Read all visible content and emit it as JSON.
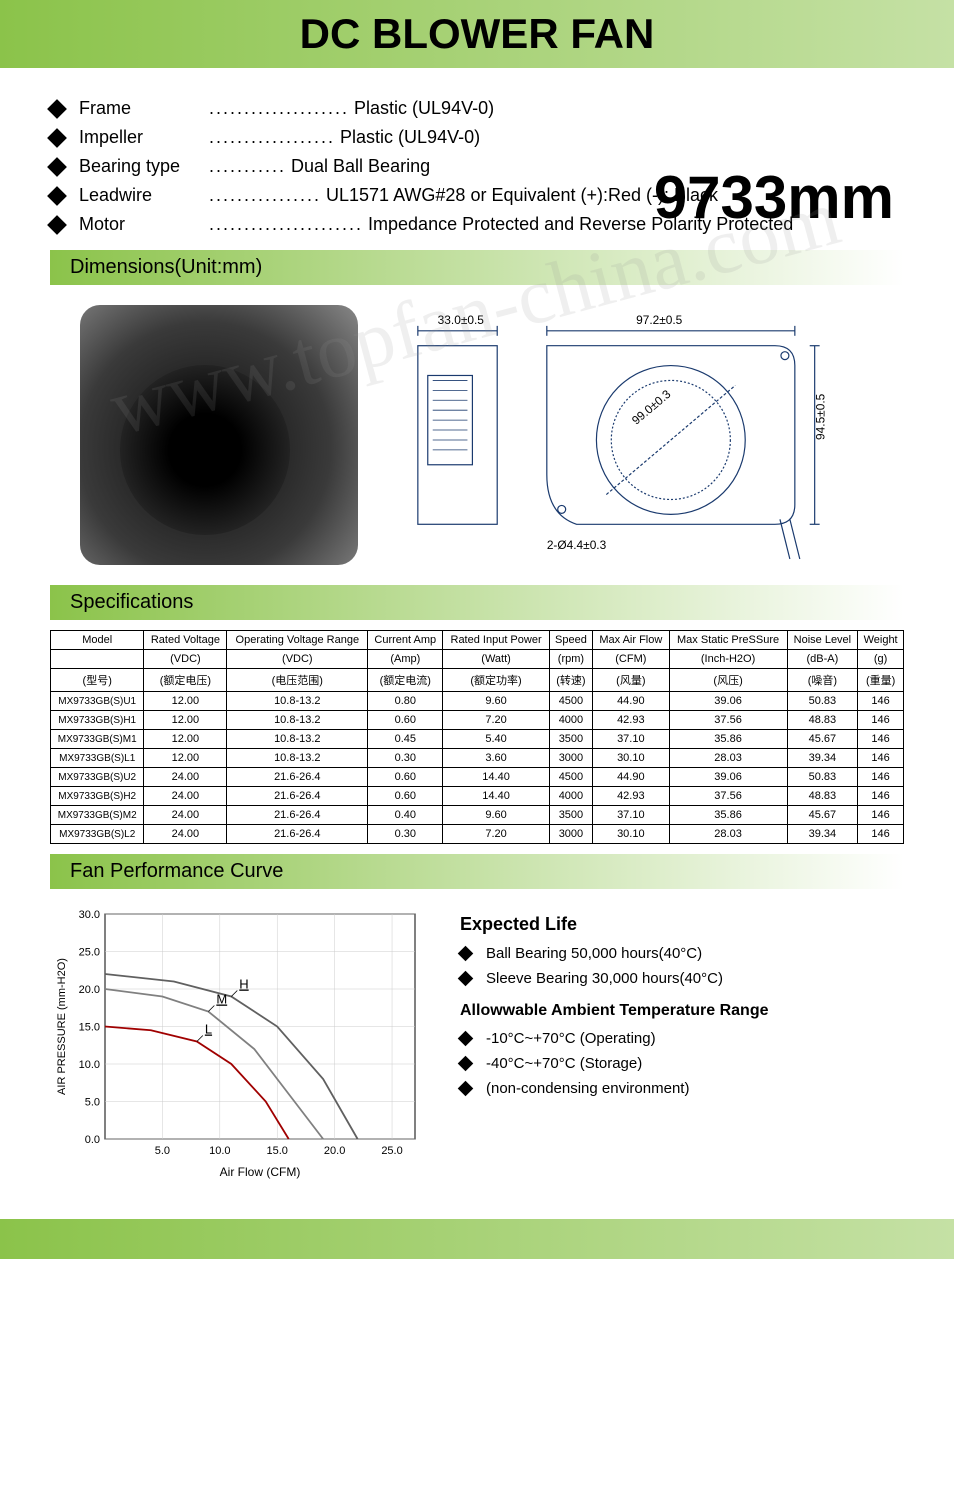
{
  "header": {
    "title": "DC BLOWER FAN"
  },
  "model_size": "9733mm",
  "attributes": [
    {
      "label": "Frame",
      "value": "Plastic (UL94V-0)"
    },
    {
      "label": "Impeller",
      "value": "Plastic (UL94V-0)"
    },
    {
      "label": "Bearing type",
      "value": "Dual Ball Bearing"
    },
    {
      "label": "Leadwire",
      "value": "UL1571 AWG#28 or Equivalent  (+):Red (-): Black"
    },
    {
      "label": "Motor",
      "value": "Impedance Protected and Reverse Polarity Protected"
    }
  ],
  "sections": {
    "dimensions": "Dimensions(Unit:mm)",
    "specifications": "Specifications",
    "performance": "Fan Performance Curve"
  },
  "drawing_dims": {
    "w1": "33.0±0.5",
    "w2": "97.2±0.5",
    "h1": "94.5±0.5",
    "diag": "99.0±0.3",
    "hole": "2-Ø4.4±0.3"
  },
  "table": {
    "headers_en": [
      "Model",
      "Rated Voltage",
      "Operating Voltage Range",
      "Current Amp",
      "Rated Input Power",
      "Speed",
      "Max Air Flow",
      "Max Static PreSSure",
      "Noise Level",
      "Weight"
    ],
    "units": [
      "",
      "(VDC)",
      "(VDC)",
      "(Amp)",
      "(Watt)",
      "(rpm)",
      "(CFM)",
      "(Inch-H2O)",
      "(dB-A)",
      "(g)"
    ],
    "headers_cn": [
      "(型号)",
      "(额定电压)",
      "(电压范围)",
      "(额定电流)",
      "(额定功率)",
      "(转速)",
      "(风量)",
      "(风压)",
      "(噪音)",
      "(重量)"
    ],
    "rows": [
      [
        "MX9733GB(S)U1",
        "12.00",
        "10.8-13.2",
        "0.80",
        "9.60",
        "4500",
        "44.90",
        "39.06",
        "50.83",
        "146"
      ],
      [
        "MX9733GB(S)H1",
        "12.00",
        "10.8-13.2",
        "0.60",
        "7.20",
        "4000",
        "42.93",
        "37.56",
        "48.83",
        "146"
      ],
      [
        "MX9733GB(S)M1",
        "12.00",
        "10.8-13.2",
        "0.45",
        "5.40",
        "3500",
        "37.10",
        "35.86",
        "45.67",
        "146"
      ],
      [
        "MX9733GB(S)L1",
        "12.00",
        "10.8-13.2",
        "0.30",
        "3.60",
        "3000",
        "30.10",
        "28.03",
        "39.34",
        "146"
      ],
      [
        "MX9733GB(S)U2",
        "24.00",
        "21.6-26.4",
        "0.60",
        "14.40",
        "4500",
        "44.90",
        "39.06",
        "50.83",
        "146"
      ],
      [
        "MX9733GB(S)H2",
        "24.00",
        "21.6-26.4",
        "0.60",
        "14.40",
        "4000",
        "42.93",
        "37.56",
        "48.83",
        "146"
      ],
      [
        "MX9733GB(S)M2",
        "24.00",
        "21.6-26.4",
        "0.40",
        "9.60",
        "3500",
        "37.10",
        "35.86",
        "45.67",
        "146"
      ],
      [
        "MX9733GB(S)L2",
        "24.00",
        "21.6-26.4",
        "0.30",
        "7.20",
        "3000",
        "30.10",
        "28.03",
        "39.34",
        "146"
      ]
    ]
  },
  "chart": {
    "xlabel": "Air Flow (CFM)",
    "ylabel": "AIR PRESSURE (mm-H2O)",
    "xlim": [
      0,
      27
    ],
    "ylim": [
      0,
      30
    ],
    "xticks": [
      "5.0",
      "10.0",
      "15.0",
      "20.0",
      "25.0"
    ],
    "yticks": [
      "0.0",
      "5.0",
      "10.0",
      "15.0",
      "20.0",
      "25.0",
      "30.0"
    ],
    "curves": [
      {
        "label": "H",
        "color": "#606060",
        "pts": [
          [
            0,
            22
          ],
          [
            6,
            21
          ],
          [
            11,
            19
          ],
          [
            15,
            15
          ],
          [
            19,
            8
          ],
          [
            22,
            0
          ]
        ]
      },
      {
        "label": "M",
        "color": "#808080",
        "pts": [
          [
            0,
            20
          ],
          [
            5,
            19
          ],
          [
            9,
            17
          ],
          [
            13,
            12
          ],
          [
            16,
            6
          ],
          [
            19,
            0
          ]
        ]
      },
      {
        "label": "L",
        "color": "#a00000",
        "pts": [
          [
            0,
            15
          ],
          [
            4,
            14.5
          ],
          [
            8,
            13
          ],
          [
            11,
            10
          ],
          [
            14,
            5
          ],
          [
            16,
            0
          ]
        ]
      }
    ],
    "bg": "#ffffff",
    "grid": "#cccccc"
  },
  "expected_life": {
    "title": "Expected Life",
    "items": [
      "Ball Bearing 50,000 hours(40°C)",
      "Sleeve Bearing 30,000 hours(40°C)"
    ],
    "allow_title": "Allowwable Ambient Temperature Range",
    "allow_items": [
      "-10°C~+70°C (Operating)",
      "-40°C~+70°C (Storage)",
      "(non-condensing environment)"
    ]
  },
  "watermark": "www.topfan-china.com",
  "colors": {
    "header_grad_start": "#8bc34a",
    "header_grad_end": "#c5e1a5"
  }
}
